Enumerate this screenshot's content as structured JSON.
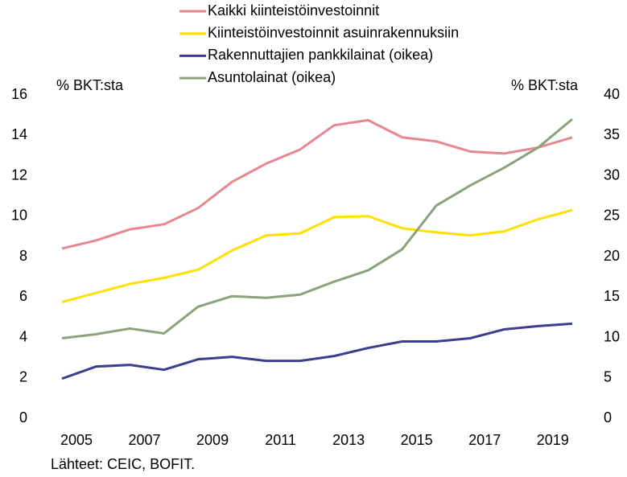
{
  "chart_data": {
    "type": "line",
    "categories": [
      "2005",
      null,
      "2007",
      null,
      "2009",
      null,
      "2011",
      null,
      "2013",
      null,
      "2015",
      null,
      "2017",
      null,
      "2019",
      null
    ],
    "series": [
      {
        "name": "Kaikki kiinteistöinvestoinnit",
        "color": "#e8868f",
        "axis": "y",
        "values": [
          8.4,
          8.8,
          9.35,
          9.6,
          10.4,
          11.7,
          12.6,
          13.3,
          14.5,
          14.75,
          13.9,
          13.7,
          13.2,
          13.1,
          13.4,
          13.9
        ]
      },
      {
        "name": "Kiinteistöinvestoinnit asuinrakennuksiin",
        "color": "#ffe000",
        "axis": "y",
        "values": [
          5.75,
          6.2,
          6.65,
          6.95,
          7.35,
          8.3,
          9.05,
          9.15,
          9.95,
          10.0,
          9.4,
          9.2,
          9.05,
          9.25,
          9.85,
          10.3
        ]
      },
      {
        "name": "Rakennuttajien pankkilainat (oikea)",
        "color": "#3b3d8f",
        "axis": "y2",
        "values": [
          4.9,
          6.4,
          6.6,
          6.0,
          7.3,
          7.6,
          7.1,
          7.1,
          7.7,
          8.7,
          9.5,
          9.5,
          9.9,
          11.0,
          11.4,
          11.7
        ]
      },
      {
        "name": "Asuntolainat (oikea)",
        "color": "#8aa37a",
        "axis": "y2",
        "values": [
          9.9,
          10.4,
          11.1,
          10.5,
          13.8,
          15.1,
          14.9,
          15.3,
          16.9,
          18.3,
          20.9,
          26.3,
          28.8,
          31.0,
          33.5,
          37.0
        ]
      }
    ],
    "ylabel": "% BKT:sta",
    "y2label": "% BKT:sta",
    "ylim": [
      0,
      16
    ],
    "yticks": [
      0,
      2,
      4,
      6,
      8,
      10,
      12,
      14,
      16
    ],
    "y2lim": [
      0,
      40
    ],
    "y2ticks": [
      0,
      5,
      10,
      15,
      20,
      25,
      30,
      35,
      40
    ],
    "source": "Lähteet: CEIC, BOFIT."
  }
}
